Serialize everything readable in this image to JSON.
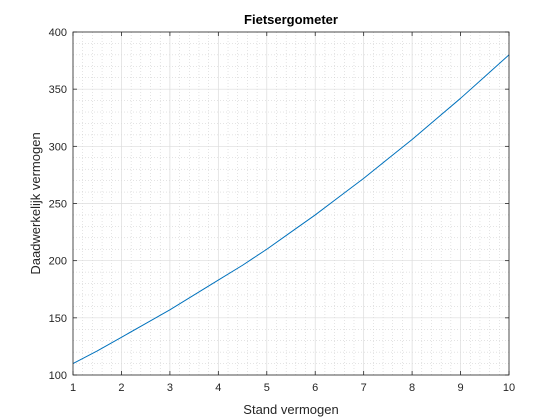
{
  "chart_data": {
    "type": "line",
    "title": "Fietsergometer",
    "xlabel": "Stand vermogen",
    "ylabel": "Daadwerkelijk vermogen",
    "xlim": [
      1,
      10
    ],
    "ylim": [
      100,
      400
    ],
    "xticks": [
      1,
      2,
      3,
      4,
      5,
      6,
      7,
      8,
      9,
      10
    ],
    "yticks": [
      100,
      150,
      200,
      250,
      300,
      350,
      400
    ],
    "grid": true,
    "minor_grid": true,
    "legend": "none",
    "series": [
      {
        "color": "#0072BD",
        "x": [
          1,
          1.5,
          2,
          2.5,
          3,
          3.5,
          4,
          4.5,
          5,
          5.5,
          6,
          6.5,
          7,
          7.5,
          8,
          8.5,
          9,
          9.5,
          10
        ],
        "y": [
          110,
          121,
          133,
          145,
          157,
          170,
          183,
          196,
          210,
          225,
          240,
          256,
          272,
          289,
          306,
          324,
          342,
          361,
          380
        ]
      }
    ]
  }
}
